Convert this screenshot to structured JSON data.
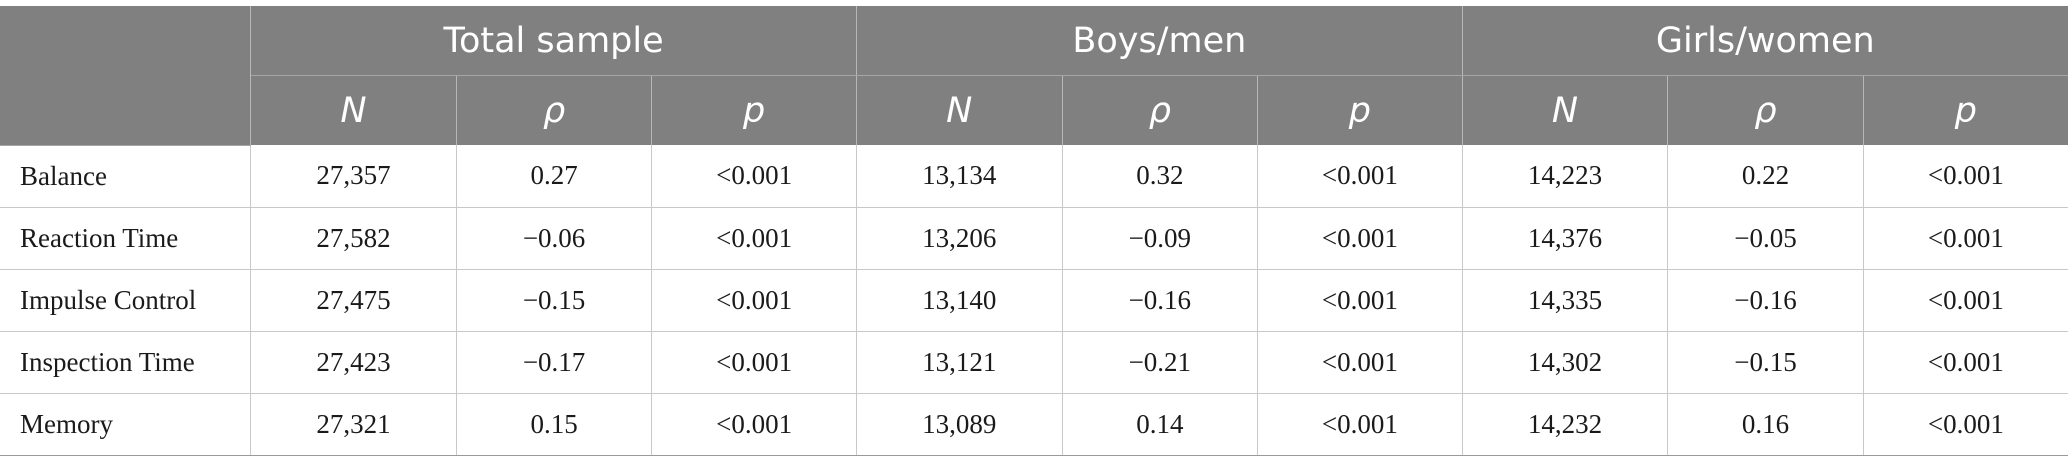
{
  "header": {
    "groups": [
      "Total sample",
      "Boys/men",
      "Girls/women"
    ],
    "subheaders": [
      "N",
      "ρ",
      "p",
      "N",
      "ρ",
      "p",
      "N",
      "ρ",
      "p"
    ]
  },
  "rows": [
    {
      "label": "Balance",
      "cells": [
        "27,357",
        "0.27",
        "<0.001",
        "13,134",
        "0.32",
        "<0.001",
        "14,223",
        "0.22",
        "<0.001"
      ]
    },
    {
      "label": "Reaction Time",
      "cells": [
        "27,582",
        "−0.06",
        "<0.001",
        "13,206",
        "−0.09",
        "<0.001",
        "14,376",
        "−0.05",
        "<0.001"
      ]
    },
    {
      "label": "Impulse Control",
      "cells": [
        "27,475",
        "−0.15",
        "<0.001",
        "13,140",
        "−0.16",
        "<0.001",
        "14,335",
        "−0.16",
        "<0.001"
      ]
    },
    {
      "label": "Inspection Time",
      "cells": [
        "27,423",
        "−0.17",
        "<0.001",
        "13,121",
        "−0.21",
        "<0.001",
        "14,302",
        "−0.15",
        "<0.001"
      ]
    },
    {
      "label": "Memory",
      "cells": [
        "27,321",
        "0.15",
        "<0.001",
        "13,089",
        "0.14",
        "<0.001",
        "14,232",
        "0.16",
        "<0.001"
      ]
    }
  ]
}
